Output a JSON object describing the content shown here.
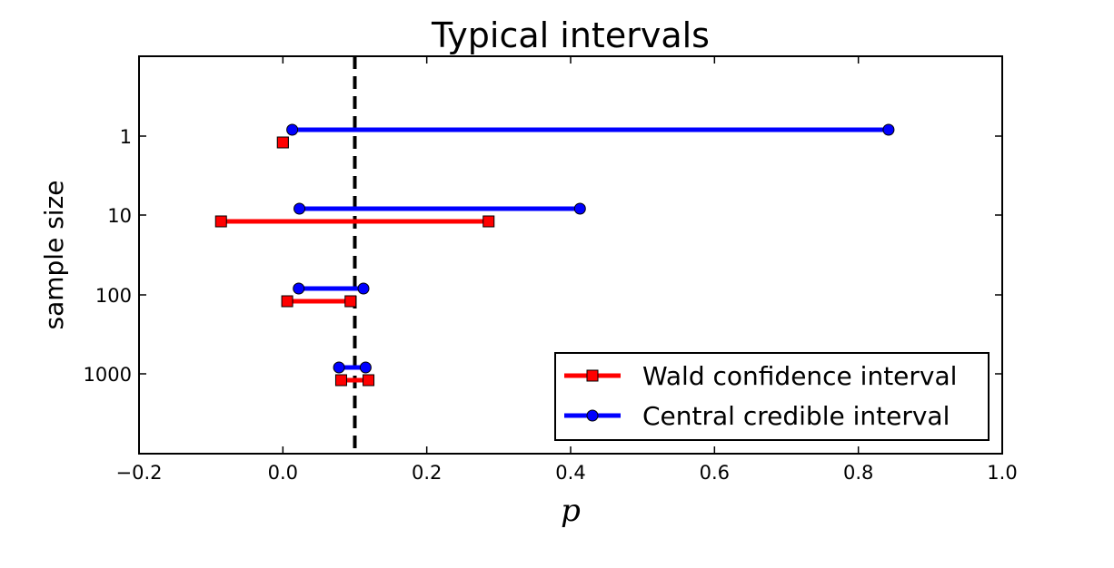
{
  "chart_data": {
    "type": "interval",
    "title": "Typical intervals",
    "xlabel": "p",
    "ylabel": "sample size",
    "xlim": [
      -0.2,
      1.0
    ],
    "xticks": [
      -0.2,
      0.0,
      0.2,
      0.4,
      0.6,
      0.8,
      1.0
    ],
    "xtick_labels": [
      "−0.2",
      "0.0",
      "0.2",
      "0.4",
      "0.6",
      "0.8",
      "1.0"
    ],
    "categories": [
      "1",
      "10",
      "100",
      "1000"
    ],
    "reference_line": {
      "x": 0.1,
      "style": "dashed",
      "color": "#000000"
    },
    "grid": false,
    "legend_position": "lower-right",
    "series": [
      {
        "name": "Wald confidence interval",
        "color": "#ff0000",
        "marker": "square",
        "intervals": [
          [
            0.0,
            0.0
          ],
          [
            -0.086,
            0.286
          ],
          [
            0.006,
            0.094
          ],
          [
            0.081,
            0.119
          ]
        ]
      },
      {
        "name": "Central credible interval",
        "color": "#0000ff",
        "marker": "circle",
        "intervals": [
          [
            0.013,
            0.842
          ],
          [
            0.023,
            0.413
          ],
          [
            0.022,
            0.112
          ],
          [
            0.078,
            0.115
          ]
        ]
      }
    ]
  }
}
